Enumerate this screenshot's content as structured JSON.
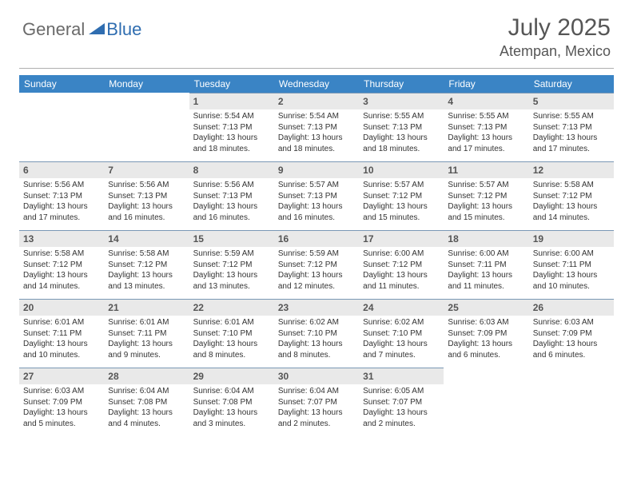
{
  "logo": {
    "part1": "General",
    "part2": "Blue"
  },
  "title": "July 2025",
  "location": "Atempan, Mexico",
  "colors": {
    "header_bg": "#3a84c5",
    "daynum_bg": "#e9e9e9",
    "rule": "#7a98b5",
    "text_muted": "#565656"
  },
  "dayHeaders": [
    "Sunday",
    "Monday",
    "Tuesday",
    "Wednesday",
    "Thursday",
    "Friday",
    "Saturday"
  ],
  "grid": {
    "leadingBlanks": 2,
    "days": [
      {
        "n": 1,
        "sunrise": "5:54 AM",
        "sunset": "7:13 PM",
        "daylight": "13 hours and 18 minutes."
      },
      {
        "n": 2,
        "sunrise": "5:54 AM",
        "sunset": "7:13 PM",
        "daylight": "13 hours and 18 minutes."
      },
      {
        "n": 3,
        "sunrise": "5:55 AM",
        "sunset": "7:13 PM",
        "daylight": "13 hours and 18 minutes."
      },
      {
        "n": 4,
        "sunrise": "5:55 AM",
        "sunset": "7:13 PM",
        "daylight": "13 hours and 17 minutes."
      },
      {
        "n": 5,
        "sunrise": "5:55 AM",
        "sunset": "7:13 PM",
        "daylight": "13 hours and 17 minutes."
      },
      {
        "n": 6,
        "sunrise": "5:56 AM",
        "sunset": "7:13 PM",
        "daylight": "13 hours and 17 minutes."
      },
      {
        "n": 7,
        "sunrise": "5:56 AM",
        "sunset": "7:13 PM",
        "daylight": "13 hours and 16 minutes."
      },
      {
        "n": 8,
        "sunrise": "5:56 AM",
        "sunset": "7:13 PM",
        "daylight": "13 hours and 16 minutes."
      },
      {
        "n": 9,
        "sunrise": "5:57 AM",
        "sunset": "7:13 PM",
        "daylight": "13 hours and 16 minutes."
      },
      {
        "n": 10,
        "sunrise": "5:57 AM",
        "sunset": "7:12 PM",
        "daylight": "13 hours and 15 minutes."
      },
      {
        "n": 11,
        "sunrise": "5:57 AM",
        "sunset": "7:12 PM",
        "daylight": "13 hours and 15 minutes."
      },
      {
        "n": 12,
        "sunrise": "5:58 AM",
        "sunset": "7:12 PM",
        "daylight": "13 hours and 14 minutes."
      },
      {
        "n": 13,
        "sunrise": "5:58 AM",
        "sunset": "7:12 PM",
        "daylight": "13 hours and 14 minutes."
      },
      {
        "n": 14,
        "sunrise": "5:58 AM",
        "sunset": "7:12 PM",
        "daylight": "13 hours and 13 minutes."
      },
      {
        "n": 15,
        "sunrise": "5:59 AM",
        "sunset": "7:12 PM",
        "daylight": "13 hours and 13 minutes."
      },
      {
        "n": 16,
        "sunrise": "5:59 AM",
        "sunset": "7:12 PM",
        "daylight": "13 hours and 12 minutes."
      },
      {
        "n": 17,
        "sunrise": "6:00 AM",
        "sunset": "7:12 PM",
        "daylight": "13 hours and 11 minutes."
      },
      {
        "n": 18,
        "sunrise": "6:00 AM",
        "sunset": "7:11 PM",
        "daylight": "13 hours and 11 minutes."
      },
      {
        "n": 19,
        "sunrise": "6:00 AM",
        "sunset": "7:11 PM",
        "daylight": "13 hours and 10 minutes."
      },
      {
        "n": 20,
        "sunrise": "6:01 AM",
        "sunset": "7:11 PM",
        "daylight": "13 hours and 10 minutes."
      },
      {
        "n": 21,
        "sunrise": "6:01 AM",
        "sunset": "7:11 PM",
        "daylight": "13 hours and 9 minutes."
      },
      {
        "n": 22,
        "sunrise": "6:01 AM",
        "sunset": "7:10 PM",
        "daylight": "13 hours and 8 minutes."
      },
      {
        "n": 23,
        "sunrise": "6:02 AM",
        "sunset": "7:10 PM",
        "daylight": "13 hours and 8 minutes."
      },
      {
        "n": 24,
        "sunrise": "6:02 AM",
        "sunset": "7:10 PM",
        "daylight": "13 hours and 7 minutes."
      },
      {
        "n": 25,
        "sunrise": "6:03 AM",
        "sunset": "7:09 PM",
        "daylight": "13 hours and 6 minutes."
      },
      {
        "n": 26,
        "sunrise": "6:03 AM",
        "sunset": "7:09 PM",
        "daylight": "13 hours and 6 minutes."
      },
      {
        "n": 27,
        "sunrise": "6:03 AM",
        "sunset": "7:09 PM",
        "daylight": "13 hours and 5 minutes."
      },
      {
        "n": 28,
        "sunrise": "6:04 AM",
        "sunset": "7:08 PM",
        "daylight": "13 hours and 4 minutes."
      },
      {
        "n": 29,
        "sunrise": "6:04 AM",
        "sunset": "7:08 PM",
        "daylight": "13 hours and 3 minutes."
      },
      {
        "n": 30,
        "sunrise": "6:04 AM",
        "sunset": "7:07 PM",
        "daylight": "13 hours and 2 minutes."
      },
      {
        "n": 31,
        "sunrise": "6:05 AM",
        "sunset": "7:07 PM",
        "daylight": "13 hours and 2 minutes."
      }
    ]
  },
  "labels": {
    "sunrise": "Sunrise: ",
    "sunset": "Sunset: ",
    "daylight": "Daylight: "
  }
}
